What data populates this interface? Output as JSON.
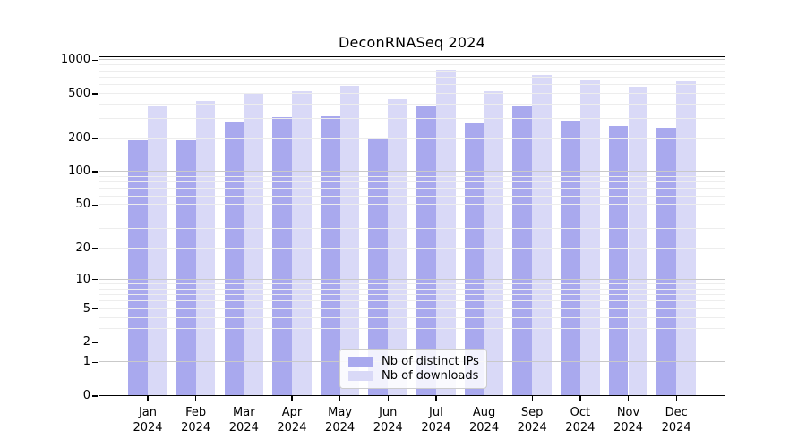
{
  "chart_data": {
    "type": "bar",
    "title": "DeconRNASeq 2024",
    "categories": [
      "Jan",
      "Feb",
      "Mar",
      "Apr",
      "May",
      "Jun",
      "Jul",
      "Aug",
      "Sep",
      "Oct",
      "Nov",
      "Dec"
    ],
    "category_year": "2024",
    "series": [
      {
        "name": "Nb of distinct IPs",
        "color": "#a9a9ee",
        "values": [
          190,
          190,
          276,
          312,
          315,
          203,
          386,
          274,
          388,
          288,
          257,
          250
        ]
      },
      {
        "name": "Nb of downloads",
        "color": "#d9d9f7",
        "values": [
          385,
          430,
          500,
          526,
          590,
          452,
          830,
          530,
          740,
          670,
          577,
          645
        ]
      }
    ],
    "yscale": "log10(1+x)",
    "yticks": [
      0,
      1,
      2,
      5,
      10,
      20,
      50,
      100,
      200,
      500,
      1000
    ],
    "ylim": [
      0,
      1080
    ],
    "grid": true,
    "legend_position": "lower center inside plot"
  }
}
